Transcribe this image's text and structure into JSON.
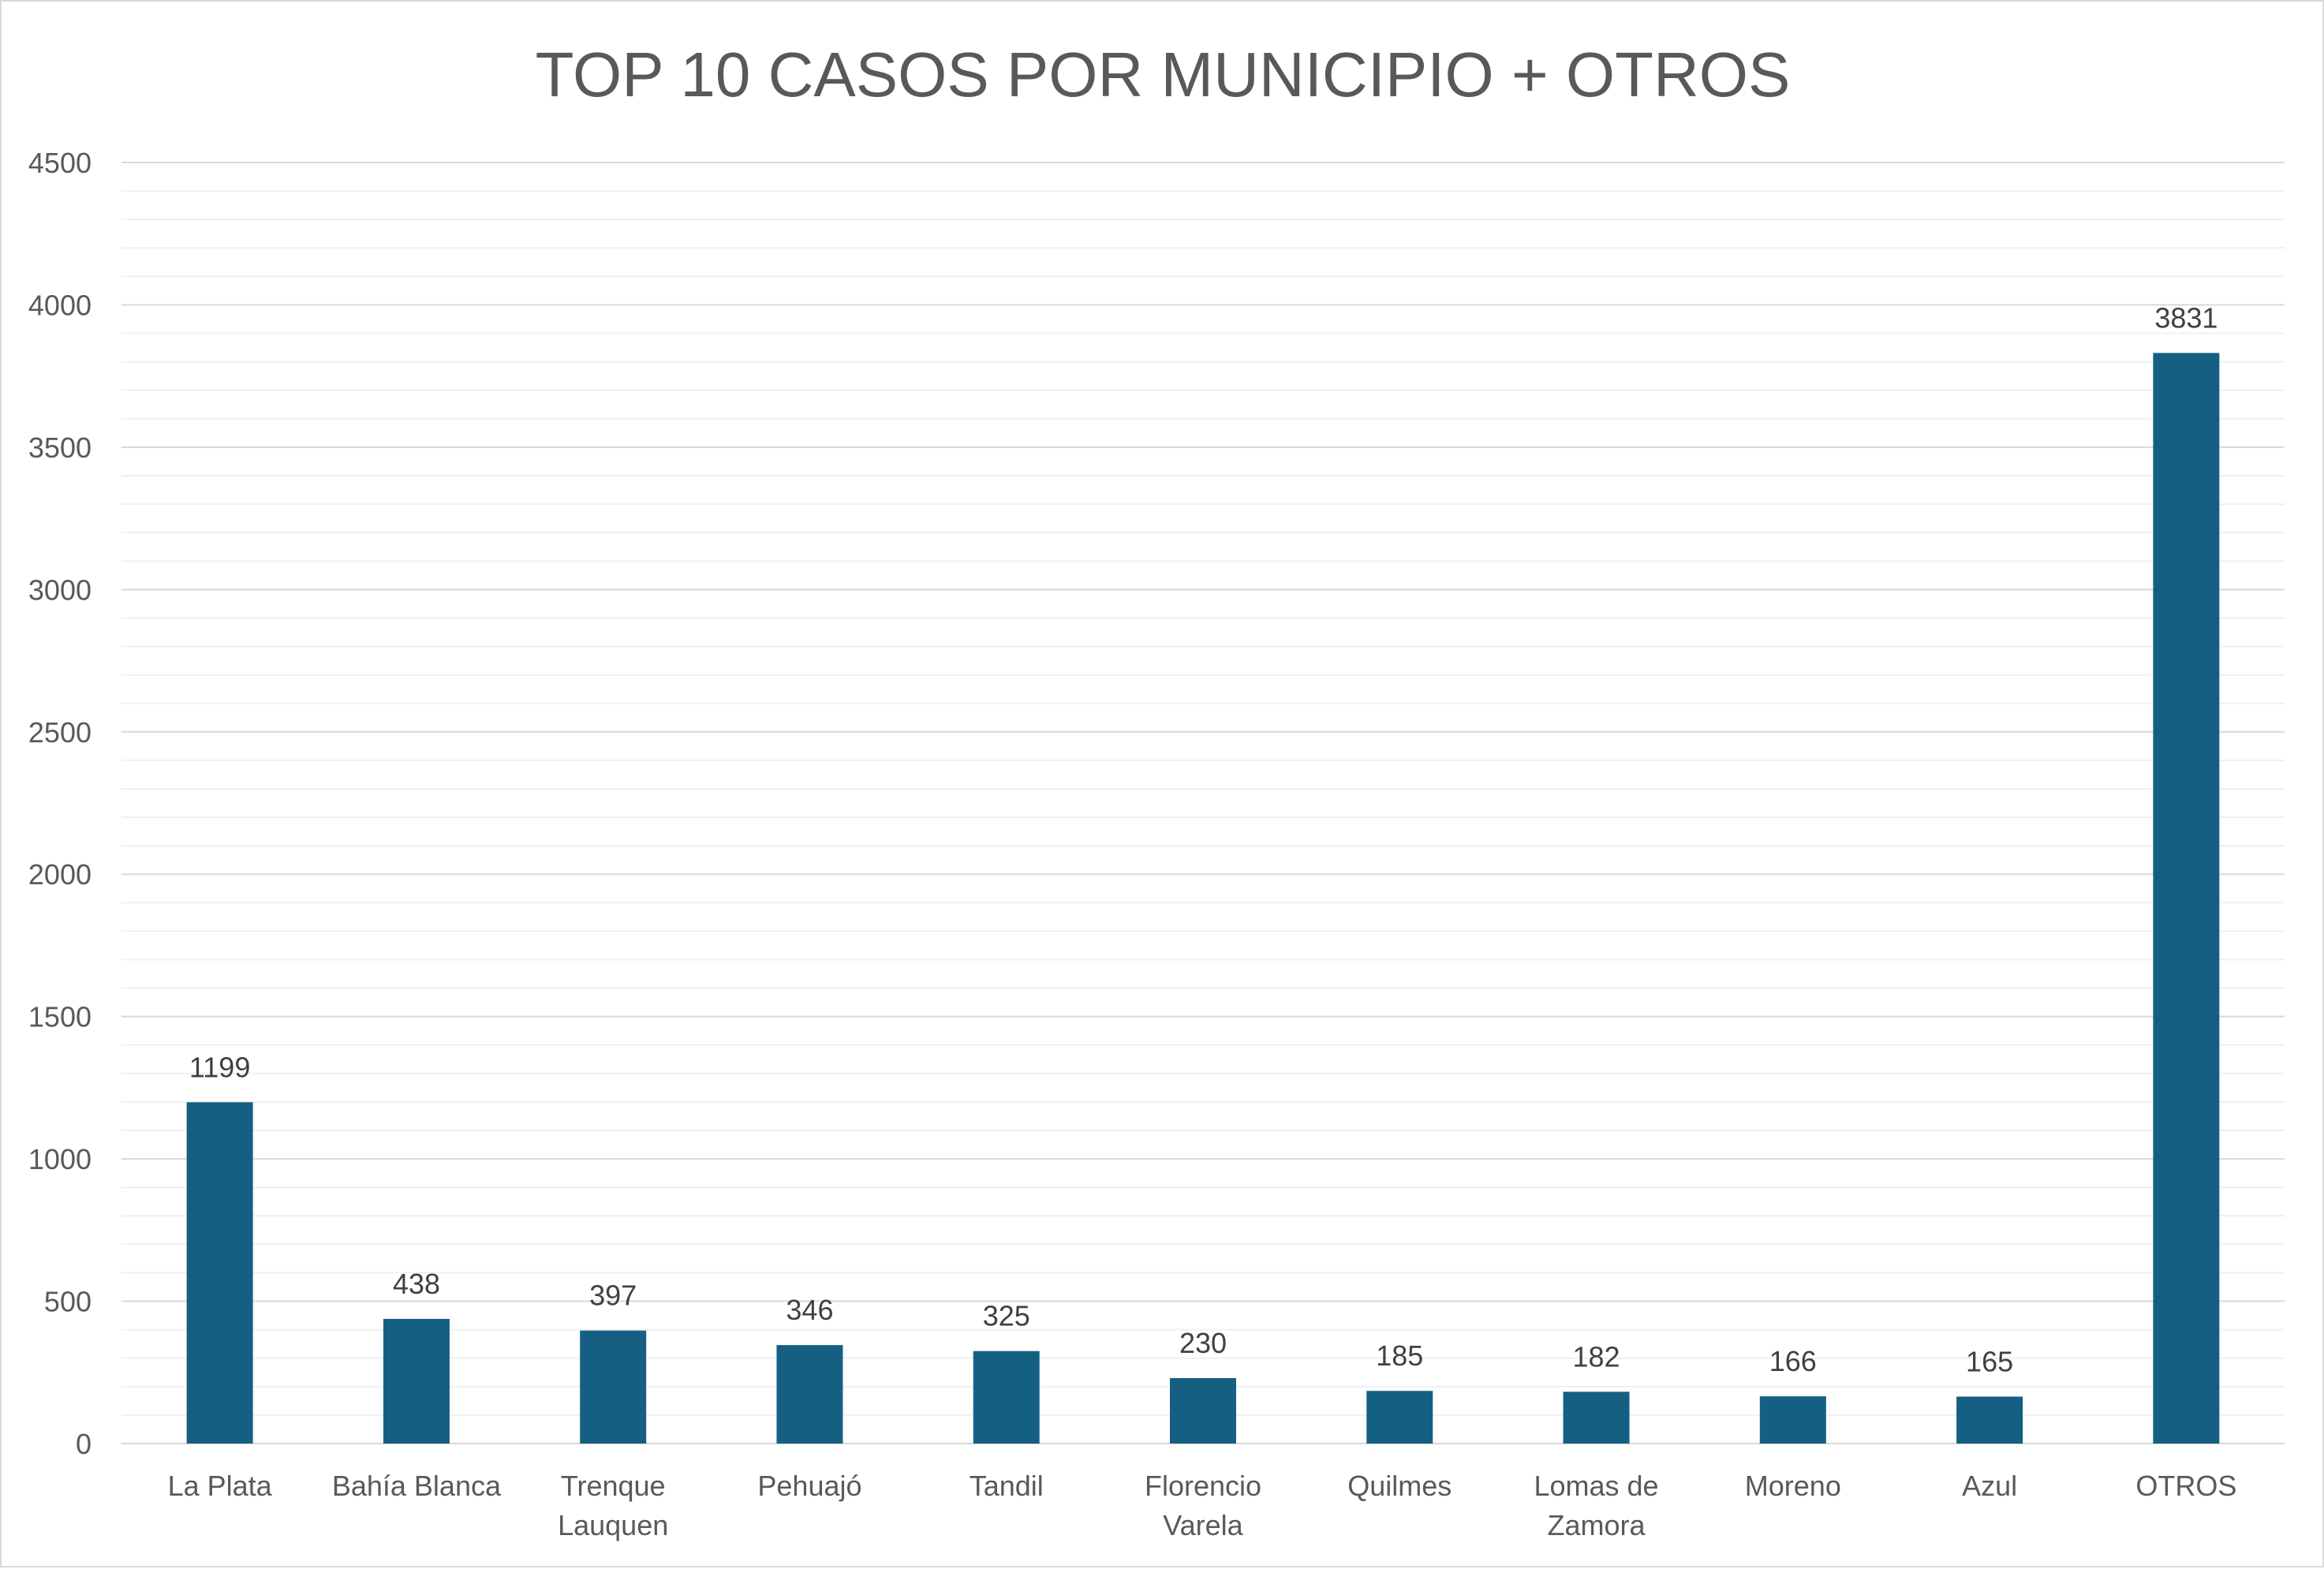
{
  "colors": {
    "bar": "#156082",
    "background": "#ffffff"
  },
  "chart_data": {
    "type": "bar",
    "title": "TOP 10 CASOS POR MUNICIPIO + OTROS",
    "categories": [
      [
        "La Plata"
      ],
      [
        "Bahía Blanca"
      ],
      [
        "Trenque",
        "Lauquen"
      ],
      [
        "Pehuajó"
      ],
      [
        "Tandil"
      ],
      [
        "Florencio",
        "Varela"
      ],
      [
        "Quilmes"
      ],
      [
        "Lomas de",
        "Zamora"
      ],
      [
        "Moreno"
      ],
      [
        "Azul"
      ],
      [
        "OTROS"
      ]
    ],
    "values": [
      1199,
      438,
      397,
      346,
      325,
      230,
      185,
      182,
      166,
      165,
      3831
    ],
    "data_labels": [
      "1199",
      "438",
      "397",
      "346",
      "325",
      "230",
      "185",
      "182",
      "166",
      "165",
      "3831"
    ],
    "ylim": [
      0,
      4500
    ],
    "yticks": [
      "0",
      "500",
      "1000",
      "1500",
      "2000",
      "2500",
      "3000",
      "3500",
      "4000",
      "4500"
    ],
    "ytick_values": [
      0,
      500,
      1000,
      1500,
      2000,
      2500,
      3000,
      3500,
      4000,
      4500
    ],
    "minor_step": 100,
    "grid": true,
    "legend": "none"
  }
}
